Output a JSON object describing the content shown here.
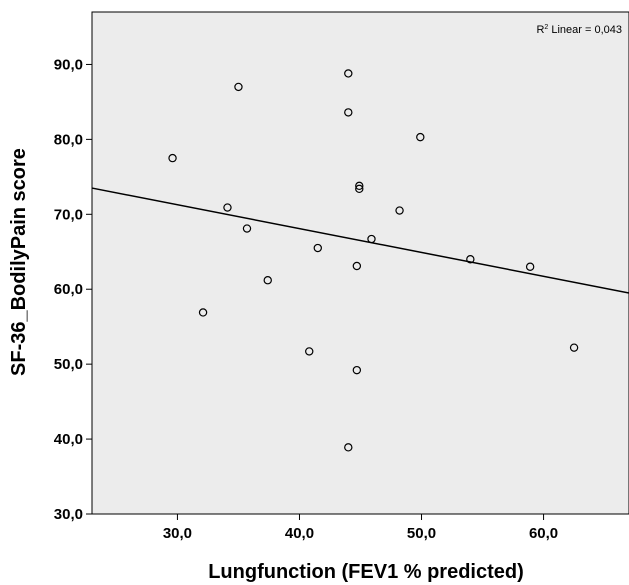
{
  "chart_data": {
    "type": "scatter",
    "xlabel": "Lungfunction (FEV1 % predicted)",
    "ylabel": "SF-36_BodilyPain score",
    "xlim": [
      23,
      67
    ],
    "ylim": [
      30,
      97
    ],
    "xticks": [
      30,
      40,
      50,
      60
    ],
    "xtick_labels": [
      "30,0",
      "40,0",
      "50,0",
      "60,0"
    ],
    "yticks": [
      30,
      40,
      50,
      60,
      70,
      80,
      90
    ],
    "ytick_labels": [
      "30,0",
      "40,0",
      "50,0",
      "60,0",
      "70,0",
      "80,0",
      "90,0"
    ],
    "grid": false,
    "background": "#ececec",
    "marker": "open-circle",
    "annotation": {
      "prefix": "R",
      "superscript": "2",
      "text": " Linear = 0,043"
    },
    "fit_line": {
      "type": "linear",
      "points": [
        [
          23,
          73.5
        ],
        [
          67,
          59.5
        ]
      ]
    },
    "points": [
      {
        "x": 29.6,
        "y": 77.5
      },
      {
        "x": 32.1,
        "y": 56.9
      },
      {
        "x": 34.1,
        "y": 70.9
      },
      {
        "x": 35.0,
        "y": 87.0
      },
      {
        "x": 35.7,
        "y": 68.1
      },
      {
        "x": 37.4,
        "y": 61.2
      },
      {
        "x": 40.8,
        "y": 51.7
      },
      {
        "x": 41.5,
        "y": 65.5
      },
      {
        "x": 44.0,
        "y": 88.8
      },
      {
        "x": 44.0,
        "y": 83.6
      },
      {
        "x": 44.0,
        "y": 38.9
      },
      {
        "x": 44.7,
        "y": 63.1
      },
      {
        "x": 44.7,
        "y": 49.2
      },
      {
        "x": 44.9,
        "y": 73.8
      },
      {
        "x": 44.9,
        "y": 73.4
      },
      {
        "x": 45.9,
        "y": 66.7
      },
      {
        "x": 48.2,
        "y": 70.5
      },
      {
        "x": 49.9,
        "y": 80.3
      },
      {
        "x": 54.0,
        "y": 64.0
      },
      {
        "x": 58.9,
        "y": 63.0
      },
      {
        "x": 62.5,
        "y": 52.2
      }
    ]
  }
}
